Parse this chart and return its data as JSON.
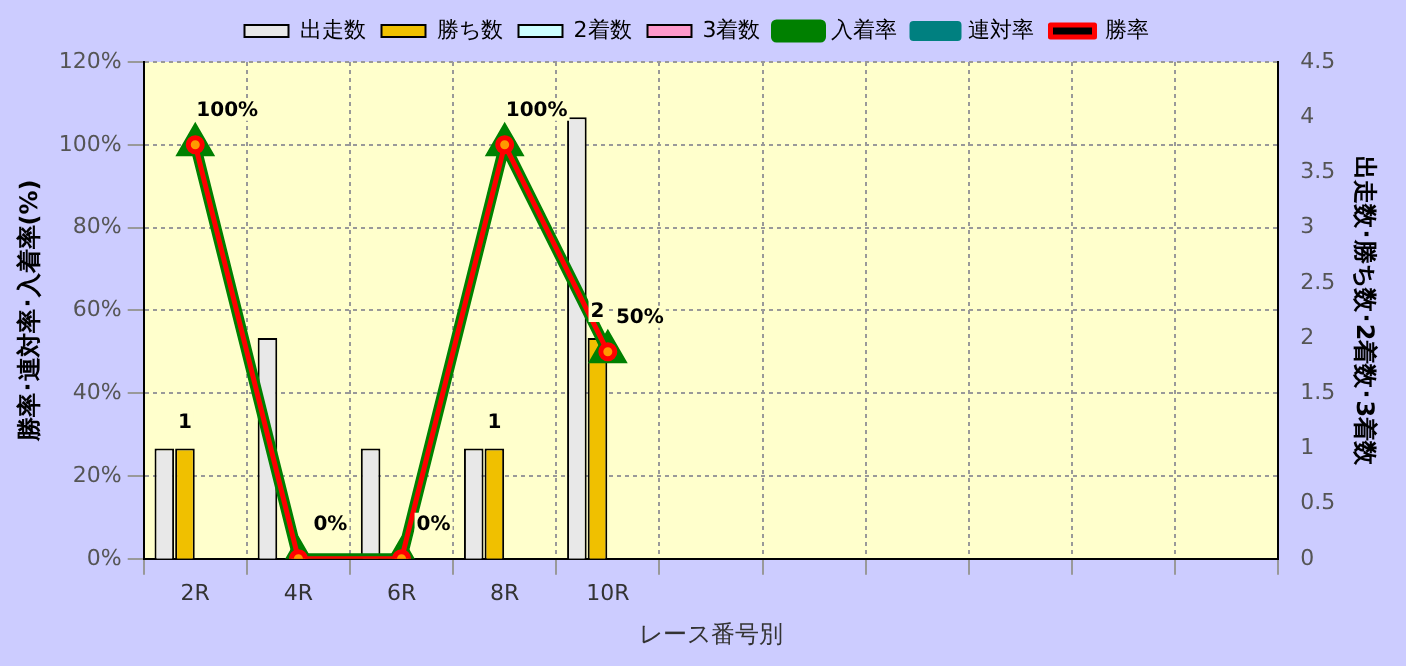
{
  "chart_data": {
    "type": "bar",
    "xlabel": "レース番号別",
    "ylabel": "勝率･連対率･入着率(%)",
    "y2label": "出走数･勝ち数･2着数･3着数",
    "categories": [
      "2R",
      "4R",
      "6R",
      "8R",
      "10R",
      null,
      null,
      null,
      null,
      null,
      null
    ],
    "series": [
      {
        "name": "出走数",
        "axis": "y2",
        "color": "#e8e8e8",
        "values": [
          1,
          2,
          1,
          1,
          4,
          null,
          null,
          null,
          null,
          null,
          null
        ]
      },
      {
        "name": "勝ち数",
        "axis": "y2",
        "color": "#f0c000",
        "values": [
          1,
          0,
          0,
          1,
          2,
          null,
          null,
          null,
          null,
          null,
          null
        ],
        "value_labels": [
          "1",
          null,
          null,
          "1",
          "2",
          null,
          null,
          null,
          null,
          null,
          null
        ]
      },
      {
        "name": "2着数",
        "axis": "y2",
        "color": "#ccffff",
        "values": [
          0,
          0,
          0,
          0,
          0,
          null,
          null,
          null,
          null,
          null,
          null
        ]
      },
      {
        "name": "3着数",
        "axis": "y2",
        "color": "#ff99cc",
        "values": [
          0,
          0,
          0,
          0,
          0,
          null,
          null,
          null,
          null,
          null,
          null
        ]
      },
      {
        "name": "入着率",
        "type": "line",
        "color": "#008000",
        "marker": "triangle",
        "values": [
          100,
          0,
          0,
          100,
          50,
          null,
          null,
          null,
          null,
          null,
          null
        ]
      },
      {
        "name": "連対率",
        "type": "line",
        "color": "#008080",
        "marker": "diamond",
        "values": [
          null,
          null,
          null,
          null,
          null,
          null,
          null,
          null,
          null,
          null,
          null
        ]
      },
      {
        "name": "勝率",
        "type": "line",
        "color": "#ff0000",
        "marker": "circle",
        "colors": [
          "#ff9900",
          "#ff9900",
          "#ff9900",
          "#ff9900",
          "#ff9900",
          null,
          null,
          null,
          null,
          null,
          null
        ],
        "values": [
          100,
          0,
          0,
          100,
          50,
          null,
          null,
          null,
          null,
          null,
          null
        ],
        "value_labels": [
          "100%",
          "0%",
          "0%",
          "100%",
          "50%",
          null,
          null,
          null,
          null,
          null,
          null
        ]
      }
    ],
    "ylim": [
      0,
      120
    ],
    "yticks": [
      {
        "value": 0,
        "label": "0%"
      },
      {
        "value": 20,
        "label": "20%"
      },
      {
        "value": 40,
        "label": "40%"
      },
      {
        "value": 60,
        "label": "60%"
      },
      {
        "value": 80,
        "label": "80%"
      },
      {
        "value": 100,
        "label": "100%"
      },
      {
        "value": 120,
        "label": "120%"
      }
    ],
    "y2lim": [
      0,
      4.5
    ],
    "y2ticks": [
      0,
      0.5,
      1,
      1.5,
      2,
      2.5,
      3,
      3.5,
      4,
      4.5
    ],
    "grid": true,
    "legend": "top",
    "line_style": "solid"
  }
}
